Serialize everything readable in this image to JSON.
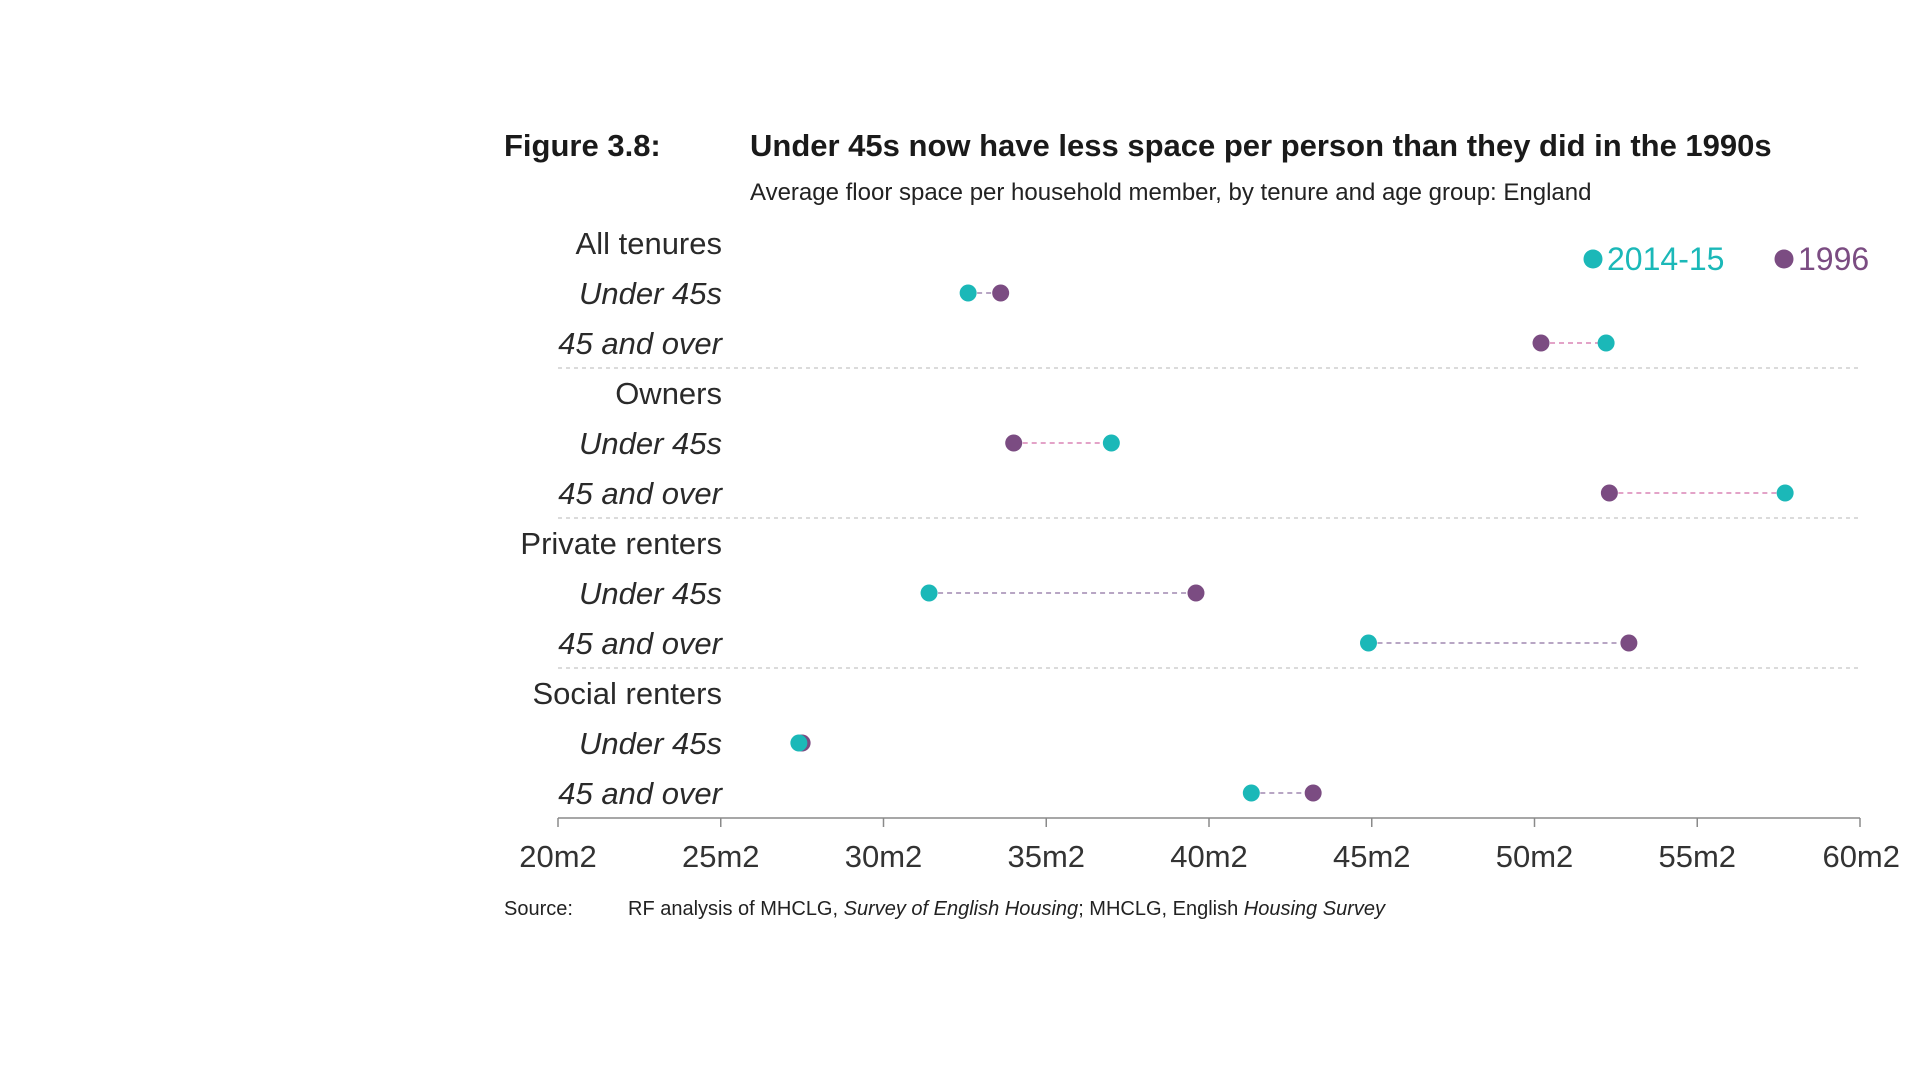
{
  "figure": {
    "label": "Figure 3.8:",
    "title": "Under 45s now have less space per person than they did in the 1990s",
    "subtitle": "Average floor space per household member, by tenure and age group: England"
  },
  "source": {
    "label": "Source:",
    "text_parts": [
      {
        "text": "RF analysis of MHCLG, ",
        "italic": false
      },
      {
        "text": "Survey of English Housing",
        "italic": true
      },
      {
        "text": "; MHCLG, English ",
        "italic": false
      },
      {
        "text": "Housing Survey",
        "italic": true
      }
    ]
  },
  "colors": {
    "series_2014": "#1bb8b8",
    "series_1996": "#7b4c82",
    "connector_decrease": "#b8a6c4",
    "connector_increase": "#e3a3c8",
    "separator": "#cfcfcf",
    "axis": "#8a8a8a"
  },
  "chart_data": {
    "type": "dot-plot",
    "xlim": [
      20,
      60
    ],
    "x_ticks": [
      20,
      25,
      30,
      35,
      40,
      45,
      50,
      55,
      60
    ],
    "x_tick_labels": [
      "20m2",
      "25m2",
      "30m2",
      "35m2",
      "40m2",
      "45m2",
      "50m2",
      "55m2",
      "60m2"
    ],
    "legend": [
      {
        "name": "2014-15",
        "color": "#1bb8b8"
      },
      {
        "name": "1996",
        "color": "#7b4c82"
      }
    ],
    "legend_position": "top-right",
    "groups": [
      {
        "label": "All tenures",
        "rows": [
          {
            "label": "Under 45s",
            "v2014": 32.6,
            "v1996": 33.6
          },
          {
            "label": "45 and over",
            "v2014": 52.2,
            "v1996": 50.2
          }
        ]
      },
      {
        "label": "Owners",
        "rows": [
          {
            "label": "Under 45s",
            "v2014": 37.0,
            "v1996": 34.0
          },
          {
            "label": "45 and over",
            "v2014": 57.7,
            "v1996": 52.3
          }
        ]
      },
      {
        "label": "Private renters",
        "rows": [
          {
            "label": "Under 45s",
            "v2014": 31.4,
            "v1996": 39.6
          },
          {
            "label": "45 and over",
            "v2014": 44.9,
            "v1996": 52.9
          }
        ]
      },
      {
        "label": "Social renters",
        "rows": [
          {
            "label": "Under 45s",
            "v2014": 27.4,
            "v1996": 27.5
          },
          {
            "label": "45 and over",
            "v2014": 41.3,
            "v1996": 43.2
          }
        ]
      }
    ]
  }
}
